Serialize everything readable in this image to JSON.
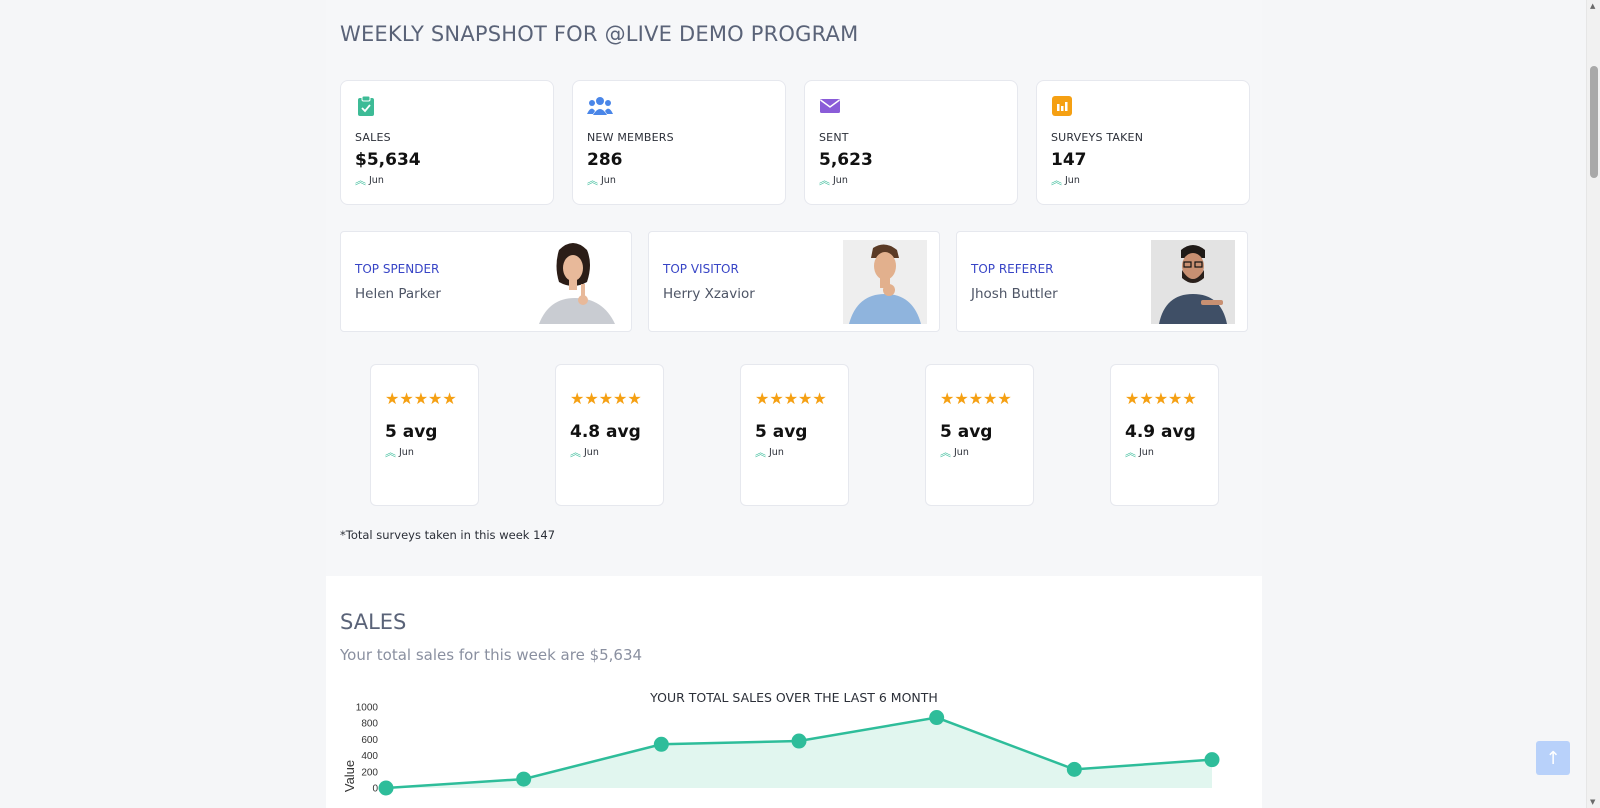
{
  "header": {
    "title": "WEEKLY SNAPSHOT FOR @LIVE DEMO PROGRAM"
  },
  "stats": [
    {
      "label": "SALES",
      "value": "$5,634",
      "trend": "Jun",
      "icon": "clipboard-check-icon",
      "color": "#3dbb96"
    },
    {
      "label": "NEW MEMBERS",
      "value": "286",
      "trend": "Jun",
      "icon": "users-icon",
      "color": "#4a86e8"
    },
    {
      "label": "SENT",
      "value": "5,623",
      "trend": "Jun",
      "icon": "envelope-icon",
      "color": "#8a5cd8"
    },
    {
      "label": "SURVEYS TAKEN",
      "value": "147",
      "trend": "Jun",
      "icon": "bar-chart-icon",
      "color": "#f5a013"
    }
  ],
  "people": [
    {
      "role": "TOP SPENDER",
      "name": "Helen Parker",
      "avatar": "woman-thinking-avatar"
    },
    {
      "role": "TOP VISITOR",
      "name": "Herry Xzavior",
      "avatar": "man-thinking-avatar"
    },
    {
      "role": "TOP REFERER",
      "name": "Jhosh Buttler",
      "avatar": "man-pointing-avatar"
    }
  ],
  "ratings": [
    {
      "stars": "★★★★★",
      "avg": "5 avg",
      "trend": "Jun"
    },
    {
      "stars": "★★★★★",
      "avg": "4.8 avg",
      "trend": "Jun"
    },
    {
      "stars": "★★★★★",
      "avg": "5 avg",
      "trend": "Jun"
    },
    {
      "stars": "★★★★★",
      "avg": "5 avg",
      "trend": "Jun"
    },
    {
      "stars": "★★★★★",
      "avg": "4.9 avg",
      "trend": "Jun"
    }
  ],
  "footnote": "*Total surveys taken in this week 147",
  "sales": {
    "title": "SALES",
    "subtitle": "Your total sales for this week are $5,634"
  },
  "chart_data": {
    "type": "area",
    "title": "YOUR TOTAL SALES OVER THE LAST 6 MONTH",
    "ylabel": "Value",
    "xlabel": "",
    "ylim": [
      0,
      1000
    ],
    "yticks": [
      "1000",
      "800",
      "600",
      "400",
      "200",
      "0"
    ],
    "values": [
      0,
      110,
      540,
      580,
      870,
      230,
      350
    ],
    "color": "#2ebd9a",
    "fill": "#e1f6ef"
  },
  "ui": {
    "scroll_top_icon": "arrow-up-icon",
    "scroll_top_glyph": "↑"
  }
}
